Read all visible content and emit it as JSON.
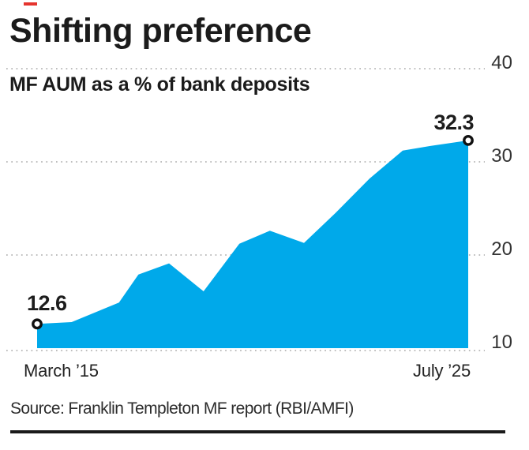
{
  "page": {
    "red_accent_color": "#e5342e",
    "source": "Source: Franklin Templeton MF report (RBI/AMFI)"
  },
  "chart_data": {
    "type": "area",
    "title": "Shifting preference",
    "subtitle": "MF AUM as a % of bank deposits",
    "series_name": "MF AUM as a % of bank deposits",
    "fill_color": "#00a9ea",
    "gridline_color": "#b4b4b4",
    "grid": "dotted horizontal",
    "legend": "none",
    "y_axis": {
      "side": "right",
      "ticks": [
        40,
        30,
        20,
        10
      ],
      "range": [
        10,
        40
      ]
    },
    "x_axis": {
      "start_label": "March ’15",
      "end_label": "July ’25"
    },
    "endpoint_labels": {
      "start": "12.6",
      "end": "32.3"
    },
    "points": [
      {
        "t": 0.0,
        "v": 12.6
      },
      {
        "t": 0.08,
        "v": 12.8
      },
      {
        "t": 0.19,
        "v": 14.9
      },
      {
        "t": 0.235,
        "v": 17.9
      },
      {
        "t": 0.306,
        "v": 19.1
      },
      {
        "t": 0.386,
        "v": 16.1
      },
      {
        "t": 0.469,
        "v": 21.2
      },
      {
        "t": 0.54,
        "v": 22.6
      },
      {
        "t": 0.619,
        "v": 21.3
      },
      {
        "t": 0.692,
        "v": 24.5
      },
      {
        "t": 0.771,
        "v": 28.2
      },
      {
        "t": 0.848,
        "v": 31.2
      },
      {
        "t": 0.912,
        "v": 31.7
      },
      {
        "t": 1.0,
        "v": 32.3
      }
    ]
  }
}
